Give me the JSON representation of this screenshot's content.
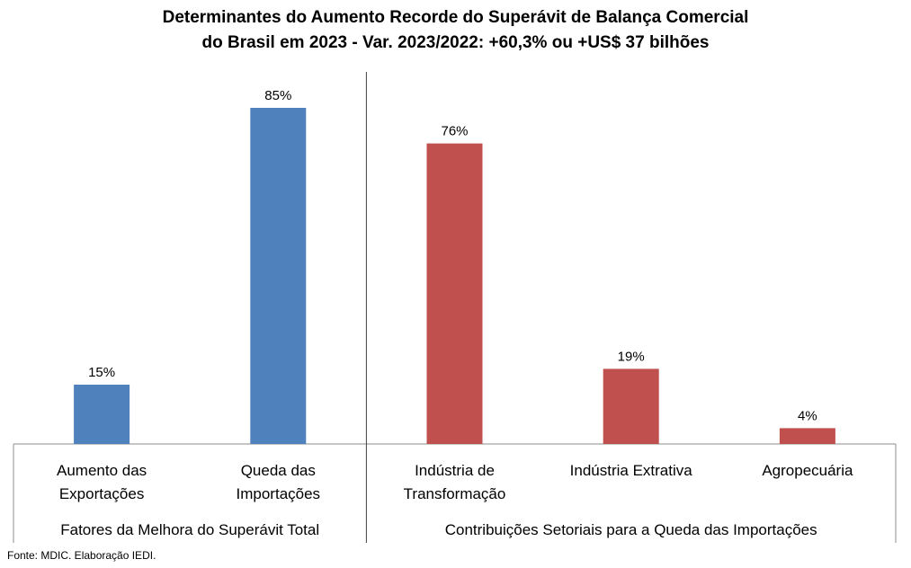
{
  "chart_data": {
    "type": "bar",
    "title_line1": "Determinantes do Aumento Recorde do Superávit de Balança Comercial",
    "title_line2": "do Brasil em 2023 - Var. 2023/2022: +60,3% ou +US$ 37 bilhões",
    "ylim": [
      0,
      100
    ],
    "grid": false,
    "legend": "none",
    "groups": [
      {
        "label": "Fatores da Melhora do Superávit Total",
        "color": "#4F81BD",
        "bars": [
          {
            "category": [
              "Aumento das",
              "Exportações"
            ],
            "value": 15,
            "value_label": "15%"
          },
          {
            "category": [
              "Queda das",
              "Importações"
            ],
            "value": 85,
            "value_label": "85%"
          }
        ]
      },
      {
        "label": "Contribuições Setoriais para a Queda das Importações",
        "color": "#C0504D",
        "bars": [
          {
            "category": [
              "Indústria de",
              "Transformação"
            ],
            "value": 76,
            "value_label": "76%"
          },
          {
            "category": [
              "Indústria Extrativa"
            ],
            "value": 19,
            "value_label": "19%"
          },
          {
            "category": [
              "Agropecuária"
            ],
            "value": 4,
            "value_label": "4%"
          }
        ]
      }
    ]
  },
  "source": "Fonte: MDIC. Elaboração IEDI."
}
